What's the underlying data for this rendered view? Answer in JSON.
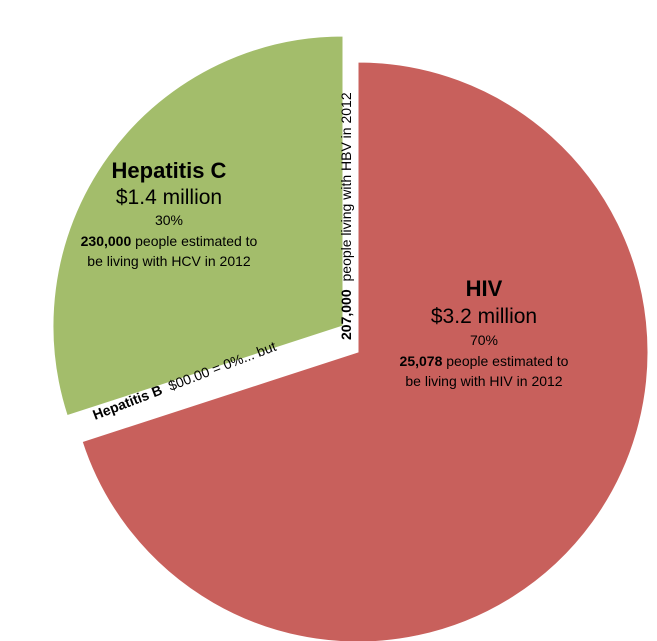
{
  "chart_data": {
    "type": "pie",
    "slices": [
      {
        "name": "HIV",
        "amount": "$3.2 million",
        "percent_label": "70%",
        "value": 70,
        "people_number": "25,078",
        "people_text_1": "people estimated to",
        "people_text_2": "be living with HIV in 2012",
        "color": "#C8605C"
      },
      {
        "name": "Hepatitis C",
        "amount": "$1.4 million",
        "percent_label": "30%",
        "value": 30,
        "people_number": "230,000",
        "people_text_1": "people estimated to",
        "people_text_2": "be living with HCV in 2012",
        "color": "#A3BD6B"
      }
    ],
    "hepatitis_b": {
      "name": "Hepatitis B",
      "text": "$00.00 = 0%... but",
      "value": 0,
      "people_number": "207,000",
      "people_text": "people living with HBV in 2012"
    }
  }
}
